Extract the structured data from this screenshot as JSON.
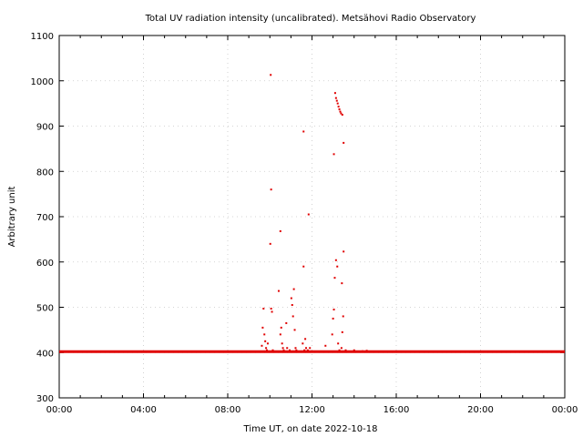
{
  "chart_data": {
    "type": "scatter",
    "title": "Total UV radiation intensity (uncalibrated). Metsähovi Radio Observatory",
    "xlabel": "Time UT, on date 2022-10-18",
    "ylabel": "Arbitrary unit",
    "xlim": [
      0,
      24
    ],
    "ylim": [
      300,
      1100
    ],
    "x_ticks": [
      0,
      4,
      8,
      12,
      16,
      20,
      24
    ],
    "x_tick_labels": [
      "00:00",
      "04:00",
      "08:00",
      "12:00",
      "16:00",
      "20:00",
      "00:00"
    ],
    "y_ticks": [
      300,
      400,
      500,
      600,
      700,
      800,
      900,
      1000,
      1100
    ],
    "y_tick_labels": [
      "300",
      "400",
      "500",
      "600",
      "700",
      "800",
      "900",
      "1000",
      "1100"
    ],
    "grid": true,
    "color": "#e00000",
    "baseline_value": 402,
    "series": [
      {
        "x": [
          9.62,
          9.66,
          9.7,
          9.74,
          9.78,
          9.82,
          9.86,
          9.9,
          10.02,
          10.06,
          10.1,
          10.14,
          10.42,
          10.5,
          10.54,
          10.58,
          10.62,
          10.66,
          10.78,
          10.82,
          10.94,
          11.02,
          11.06,
          11.1,
          11.14,
          11.18,
          11.22,
          11.26,
          11.56,
          11.6,
          11.64,
          11.68,
          11.72,
          11.8,
          11.84,
          11.9,
          12.64,
          12.96,
          13.0,
          13.04,
          13.08,
          13.14,
          13.2,
          13.24,
          13.3,
          13.4,
          13.44,
          13.48,
          13.6,
          13.8,
          14.0,
          14.2,
          14.4,
          14.6
        ],
        "y": [
          415,
          455,
          497,
          440,
          425,
          410,
          405,
          420,
          640,
          497,
          490,
          405,
          536,
          440,
          455,
          420,
          410,
          405,
          465,
          410,
          405,
          520,
          505,
          480,
          540,
          450,
          410,
          405,
          420,
          590,
          405,
          430,
          410,
          405,
          705,
          410,
          415,
          440,
          475,
          495,
          565,
          604,
          590,
          420,
          405,
          410,
          445,
          480,
          405,
          402,
          405,
          402,
          403,
          404
        ]
      },
      {
        "x": [
          10.06,
          10.5,
          11.6,
          13.04,
          13.1,
          13.14,
          13.18,
          13.22,
          13.26,
          13.3,
          13.34,
          13.38,
          13.44,
          13.5
        ],
        "y": [
          760,
          668,
          888,
          838,
          973,
          962,
          956,
          950,
          943,
          937,
          932,
          928,
          925,
          623
        ]
      },
      {
        "x": [
          10.04,
          13.5,
          13.42
        ],
        "y": [
          1013,
          863,
          553
        ]
      }
    ]
  }
}
